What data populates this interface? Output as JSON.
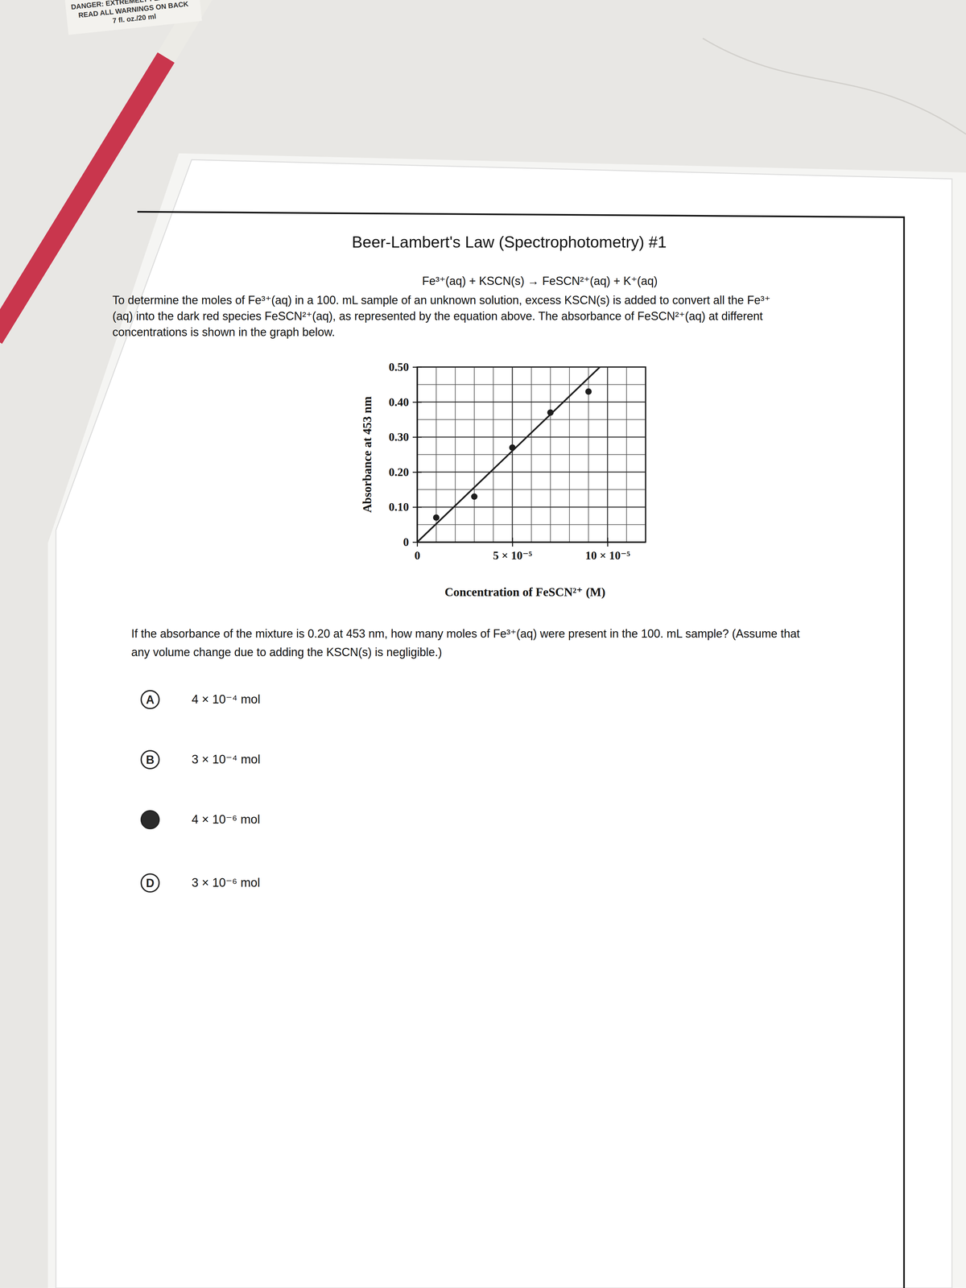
{
  "background_label": [
    "DANGER: EXTREMELY FLAMMABLE",
    "READ ALL WARNINGS ON BACK",
    "7 fl. oz./20 ml"
  ],
  "title": "Beer-Lambert's Law (Spectrophotometry) #1",
  "equation": "Fe³⁺(aq) + KSCN(s) → FeSCN²⁺(aq) + K⁺(aq)",
  "intro": [
    "To determine the moles of Fe³⁺(aq) in a 100. mL sample of an unknown solution, excess KSCN(s) is added to convert all the Fe³⁺",
    "(aq) into the dark red species FeSCN²⁺(aq), as represented by the equation above. The absorbance of FeSCN²⁺(aq) at different",
    "concentrations is shown in the graph below."
  ],
  "chart_data": {
    "type": "scatter",
    "x_label": "Concentration of FeSCN²⁺ (M)",
    "y_label": "Absorbance at 453 nm",
    "xlim": [
      0,
      0.00012
    ],
    "xticks": [
      0,
      {
        "value": 5e-05,
        "label": "5 × 10⁻⁵"
      },
      {
        "value": 0.0001,
        "label": "10 × 10⁻⁵"
      }
    ],
    "ylim": [
      0,
      0.5
    ],
    "yticks": [
      0,
      {
        "value": 0.1,
        "label": "0.10"
      },
      {
        "value": 0.2,
        "label": "0.20"
      },
      {
        "value": 0.3,
        "label": "0.30"
      },
      {
        "value": 0.4,
        "label": "0.40"
      },
      {
        "value": 0.5,
        "label": "0.50"
      }
    ],
    "grid": true,
    "series": [
      {
        "type": "scatter",
        "marker": "circle",
        "color": "#1e1e1e",
        "x": [
          1e-05,
          3e-05,
          5e-05,
          7e-05,
          9e-05
        ],
        "values": [
          0.07,
          0.13,
          0.27,
          0.37,
          0.43
        ]
      },
      {
        "type": "line",
        "line_style": "solid",
        "color": "#1e1e1e",
        "x": [
          0,
          9.6e-05
        ],
        "values": [
          0,
          0.5
        ]
      }
    ]
  },
  "question": [
    "If the absorbance of the mixture is 0.20 at 453 nm, how many moles of Fe³⁺(aq) were present in the 100. mL sample? (Assume that",
    "any volume change due to adding the KSCN(s) is negligible.)"
  ],
  "choices": [
    {
      "letter": "A",
      "text": "4 × 10⁻⁴ mol"
    },
    {
      "letter": "B",
      "text": "3 × 10⁻⁴ mol"
    },
    {
      "letter": null,
      "text": "4 × 10⁻⁶ mol",
      "marked": true
    },
    {
      "letter": "D",
      "text": "3 × 10⁻⁶ mol"
    }
  ]
}
